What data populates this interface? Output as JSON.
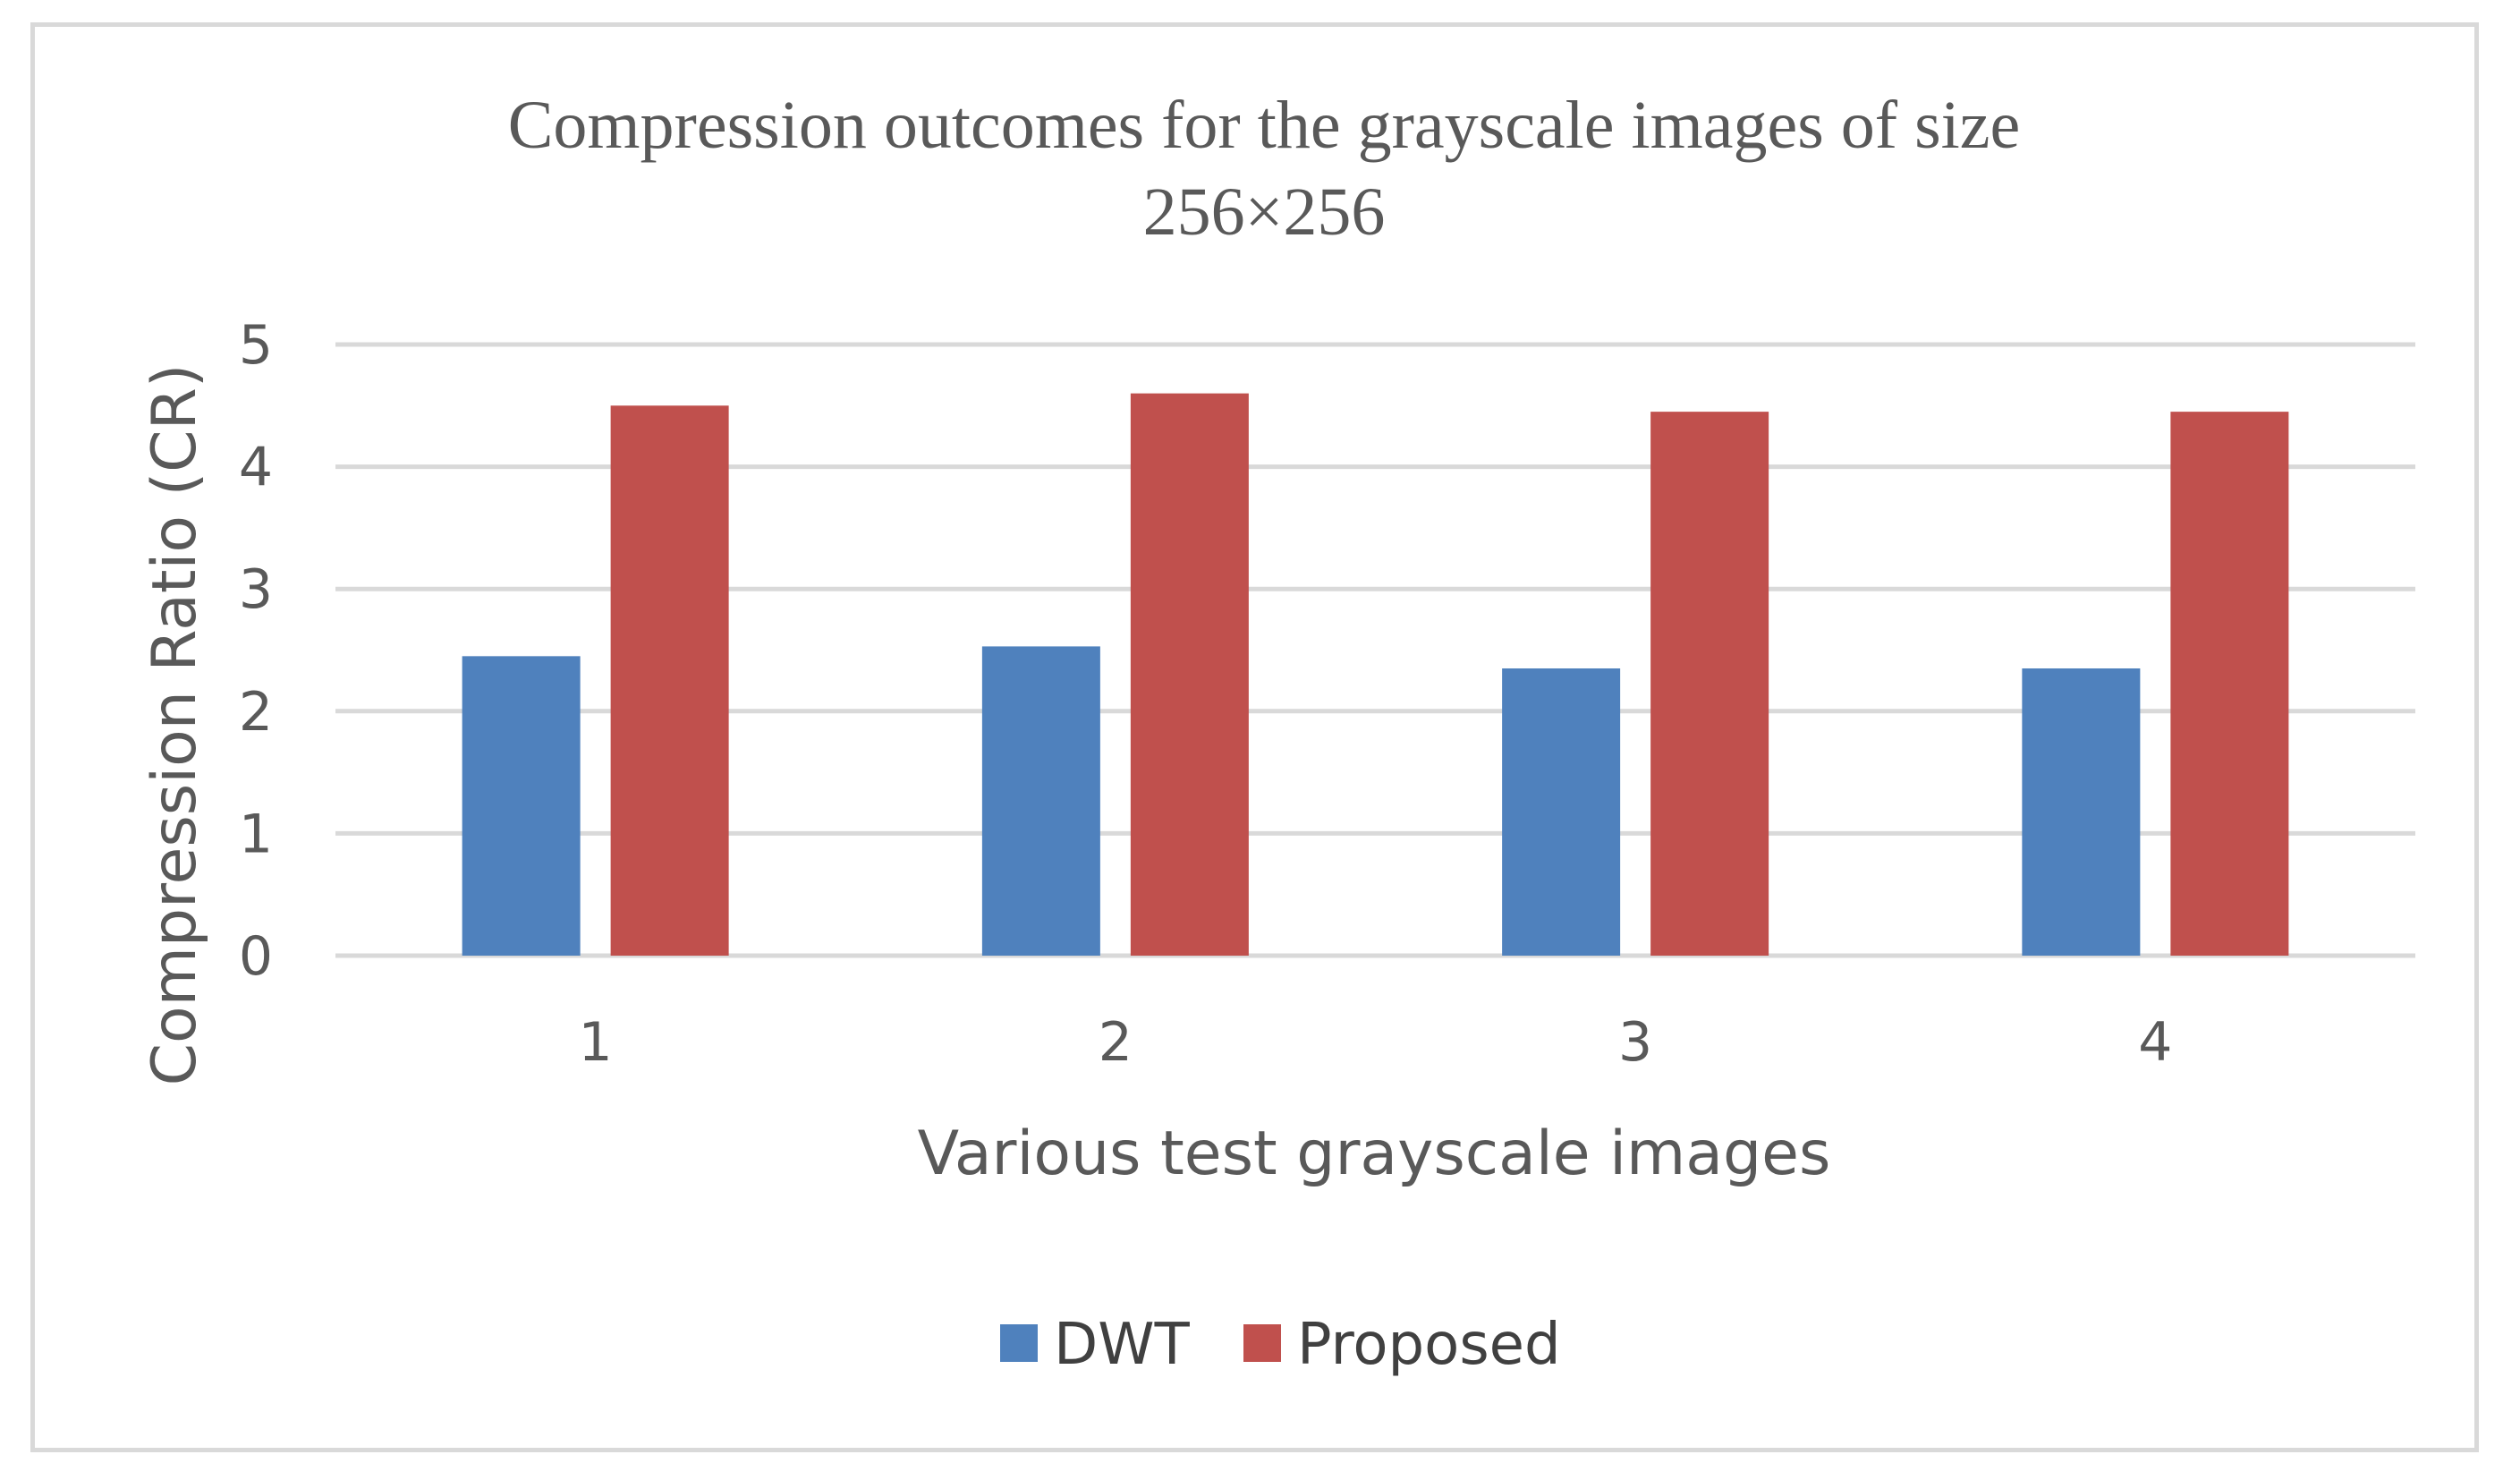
{
  "chart_data": {
    "type": "bar",
    "title": [
      "Compression outcomes for the grayscale images of size",
      "256×256"
    ],
    "xlabel": "Various test grayscale images",
    "ylabel": "Compression Ratio (CR)",
    "categories": [
      "1",
      "2",
      "3",
      "4"
    ],
    "ylim": [
      0,
      5
    ],
    "yticks": [
      0,
      1,
      2,
      3,
      4,
      5
    ],
    "grid": true,
    "legend_position": "bottom",
    "series": [
      {
        "name": "DWT",
        "color": "#4f81bd",
        "values": [
          2.45,
          2.53,
          2.35,
          2.35
        ]
      },
      {
        "name": "Proposed",
        "color": "#c0504d",
        "values": [
          4.5,
          4.6,
          4.45,
          4.45
        ]
      }
    ]
  }
}
